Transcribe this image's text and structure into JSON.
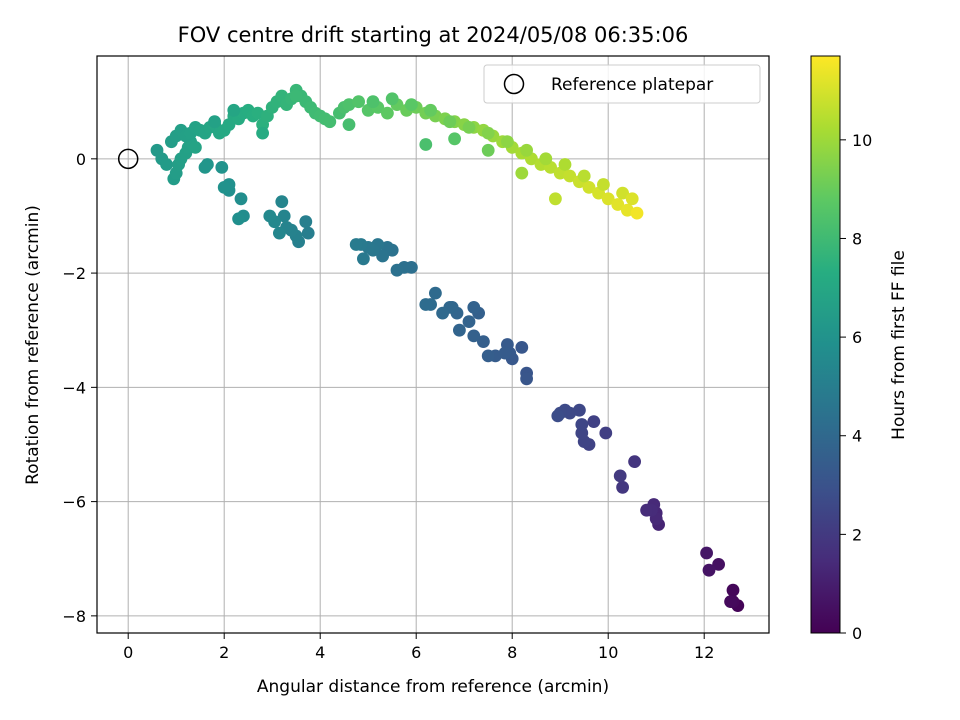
{
  "chart_data": {
    "type": "scatter",
    "title": "FOV centre drift starting at 2024/05/08 06:35:06",
    "xlabel": "Angular distance from reference (arcmin)",
    "ylabel": "Rotation from reference (arcmin)",
    "xlim": [
      -0.65,
      13.35
    ],
    "ylim": [
      -8.3,
      1.8
    ],
    "xticks": [
      0,
      2,
      4,
      6,
      8,
      10,
      12
    ],
    "yticks": [
      -8,
      -6,
      -4,
      -2,
      0
    ],
    "grid": true,
    "colormap": "viridis",
    "colorbar": {
      "label": "Hours from first FF file",
      "range": [
        0,
        11.7
      ],
      "ticks": [
        0,
        2,
        4,
        6,
        8,
        10
      ]
    },
    "legend": {
      "placement": "top-right",
      "entries": [
        "Reference platepar"
      ]
    },
    "reference_point": {
      "x": 0,
      "y": 0
    },
    "series": [
      {
        "x": [
          12.7,
          12.6,
          12.6,
          12.55,
          12.3,
          12.1,
          12.05,
          11.05,
          11.0,
          11.0,
          10.95,
          10.9,
          10.8,
          10.55,
          10.3,
          10.25,
          9.95,
          9.7,
          9.6,
          9.5,
          9.45,
          9.45,
          9.4,
          9.2,
          9.1,
          9.0,
          8.95,
          8.3,
          8.3,
          8.2,
          8.0,
          7.95,
          7.9,
          7.85,
          7.65,
          7.5,
          7.4,
          7.3,
          7.2,
          7.2,
          7.1,
          6.9,
          6.85,
          6.75,
          6.7,
          6.55,
          6.4,
          6.3,
          6.2,
          5.9,
          5.75,
          5.6,
          5.5,
          5.4,
          5.3,
          5.2,
          5.1,
          5.0,
          4.9,
          4.85,
          4.75,
          3.75,
          3.7,
          3.55,
          3.5,
          3.4,
          3.3,
          3.25,
          3.2,
          3.15,
          3.05,
          2.95,
          2.4,
          2.35,
          2.3,
          2.1,
          2.1,
          2.0,
          1.95,
          1.65,
          1.6,
          0.6,
          0.7,
          0.8,
          0.95,
          1.0,
          1.05,
          1.1,
          1.2,
          1.25,
          1.3,
          1.4,
          0.9,
          1.0,
          1.1,
          1.2,
          1.3,
          1.4,
          1.5,
          1.6,
          1.7,
          1.8,
          1.9,
          2.0,
          2.1,
          2.2,
          2.3,
          2.4,
          2.5,
          2.6,
          2.7,
          2.8,
          2.9,
          3.0,
          3.1,
          3.2,
          3.3,
          3.4,
          3.5,
          3.6,
          3.7,
          3.8,
          3.9,
          4.0,
          4.1,
          4.2,
          4.4,
          4.5,
          4.6,
          4.8,
          5.0,
          5.2,
          5.4,
          5.6,
          5.8,
          6.0,
          6.2,
          6.4,
          6.6,
          6.8,
          7.0,
          7.2,
          7.4,
          7.6,
          7.8,
          8.0,
          8.2,
          8.4,
          8.6,
          8.8,
          9.0,
          9.2,
          9.4,
          9.6,
          9.8,
          10.0,
          10.2,
          10.4,
          10.6,
          5.1,
          5.5,
          5.9,
          6.3,
          6.7,
          7.1,
          7.5,
          7.9,
          8.3,
          8.7,
          9.1,
          9.5,
          9.9,
          10.3,
          10.5,
          8.9,
          8.2,
          6.2,
          6.8,
          7.5,
          4.6,
          3.5,
          2.8,
          2.2,
          1.8
        ],
        "y": [
          -7.82,
          -7.55,
          -7.75,
          -7.75,
          -7.1,
          -7.2,
          -6.9,
          -6.4,
          -6.2,
          -6.3,
          -6.05,
          -6.15,
          -6.15,
          -5.3,
          -5.75,
          -5.55,
          -4.8,
          -4.6,
          -5.0,
          -4.95,
          -4.8,
          -4.65,
          -4.4,
          -4.45,
          -4.4,
          -4.45,
          -4.5,
          -3.75,
          -3.85,
          -3.3,
          -3.5,
          -3.4,
          -3.25,
          -3.4,
          -3.45,
          -3.45,
          -3.2,
          -2.7,
          -3.1,
          -2.6,
          -2.85,
          -3.0,
          -2.7,
          -2.6,
          -2.6,
          -2.7,
          -2.35,
          -2.55,
          -2.55,
          -1.9,
          -1.9,
          -1.95,
          -1.6,
          -1.55,
          -1.7,
          -1.5,
          -1.6,
          -1.55,
          -1.75,
          -1.5,
          -1.5,
          -1.3,
          -1.1,
          -1.45,
          -1.35,
          -1.25,
          -1.2,
          -1.0,
          -0.75,
          -1.3,
          -1.1,
          -1.0,
          -1.0,
          -0.7,
          -1.05,
          -0.55,
          -0.45,
          -0.5,
          -0.15,
          -0.1,
          -0.15,
          0.15,
          0.0,
          -0.1,
          -0.35,
          -0.25,
          -0.1,
          0.0,
          0.1,
          0.2,
          0.3,
          0.2,
          0.3,
          0.4,
          0.5,
          0.4,
          0.45,
          0.55,
          0.5,
          0.45,
          0.55,
          0.6,
          0.45,
          0.5,
          0.6,
          0.75,
          0.7,
          0.8,
          0.85,
          0.75,
          0.8,
          0.6,
          0.75,
          0.9,
          1.0,
          1.1,
          0.95,
          1.05,
          1.2,
          1.1,
          1.0,
          0.9,
          0.8,
          0.75,
          0.7,
          0.65,
          0.8,
          0.9,
          0.95,
          1.0,
          0.85,
          0.9,
          0.8,
          0.95,
          0.85,
          0.9,
          0.8,
          0.75,
          0.7,
          0.65,
          0.6,
          0.55,
          0.5,
          0.4,
          0.3,
          0.2,
          0.1,
          0.0,
          -0.1,
          -0.15,
          -0.25,
          -0.3,
          -0.4,
          -0.5,
          -0.6,
          -0.7,
          -0.8,
          -0.9,
          -0.95,
          1.0,
          1.05,
          0.95,
          0.85,
          0.65,
          0.55,
          0.45,
          0.3,
          0.15,
          0.0,
          -0.1,
          -0.3,
          -0.45,
          -0.6,
          -0.7,
          -0.7,
          -0.25,
          0.25,
          0.35,
          0.15,
          0.6,
          1.1,
          0.45,
          0.85,
          0.65
        ],
        "hours": [
          0.1,
          0.2,
          0.25,
          0.3,
          0.5,
          0.6,
          0.7,
          1.2,
          1.3,
          1.35,
          1.4,
          1.45,
          1.5,
          1.8,
          1.9,
          2.0,
          2.2,
          2.3,
          2.35,
          2.4,
          2.45,
          2.5,
          2.55,
          2.6,
          2.65,
          2.7,
          2.75,
          3.1,
          3.15,
          3.2,
          3.25,
          3.3,
          3.35,
          3.4,
          3.45,
          3.5,
          3.55,
          3.6,
          3.65,
          3.7,
          3.75,
          3.8,
          3.85,
          3.9,
          3.95,
          4.0,
          4.05,
          4.1,
          4.15,
          4.3,
          4.35,
          4.4,
          4.45,
          4.5,
          4.55,
          4.6,
          4.65,
          4.7,
          4.75,
          4.8,
          4.85,
          5.0,
          5.05,
          5.1,
          5.15,
          5.2,
          5.25,
          5.3,
          5.35,
          5.4,
          5.45,
          5.5,
          5.7,
          5.75,
          5.8,
          5.85,
          5.9,
          5.95,
          6.0,
          6.1,
          6.15,
          6.3,
          6.35,
          6.4,
          6.45,
          6.5,
          6.55,
          6.6,
          6.65,
          6.7,
          6.75,
          6.8,
          6.5,
          6.55,
          6.6,
          6.65,
          6.7,
          6.75,
          6.8,
          6.85,
          6.9,
          6.95,
          7.0,
          7.05,
          7.1,
          7.15,
          7.2,
          7.25,
          7.3,
          7.35,
          7.4,
          7.45,
          7.5,
          7.55,
          7.6,
          7.65,
          7.7,
          7.75,
          7.8,
          7.85,
          7.9,
          7.95,
          8.0,
          8.05,
          8.1,
          8.15,
          8.2,
          8.3,
          8.4,
          8.5,
          8.6,
          8.7,
          8.8,
          8.9,
          9.0,
          9.1,
          9.2,
          9.3,
          9.4,
          9.5,
          9.6,
          9.7,
          9.8,
          9.9,
          10.0,
          10.1,
          10.2,
          10.3,
          10.4,
          10.5,
          10.6,
          10.7,
          10.8,
          10.9,
          11.0,
          11.1,
          11.2,
          11.3,
          11.5,
          8.4,
          8.5,
          8.7,
          8.9,
          9.1,
          9.3,
          9.5,
          9.7,
          9.9,
          10.1,
          10.3,
          10.5,
          10.7,
          10.9,
          11.1,
          10.6,
          10.0,
          8.3,
          8.6,
          9.1,
          8.2,
          7.9,
          7.2,
          6.9,
          6.7
        ]
      }
    ]
  }
}
